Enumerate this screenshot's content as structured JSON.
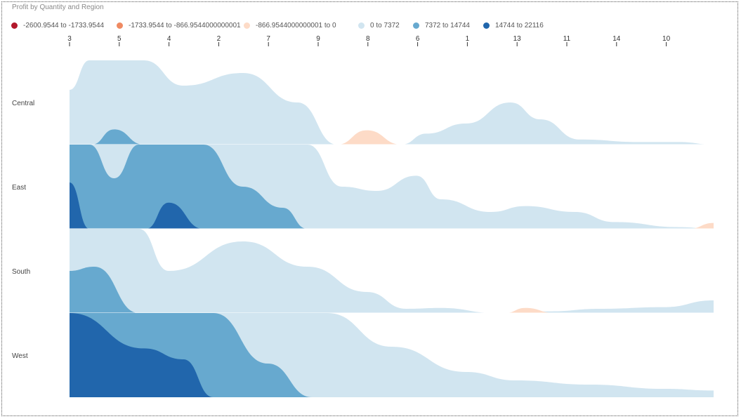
{
  "chart_data": {
    "type": "area",
    "title": "Profit by Quantity and Region",
    "legend_position": "top-left",
    "legend": [
      {
        "label": "-2600.9544 to -1733.9544",
        "color": "#b2182b"
      },
      {
        "label": "-1733.9544 to -866.9544000000001",
        "color": "#ef8a62"
      },
      {
        "label": "-866.9544000000001 to 0",
        "color": "#fddbc7"
      },
      {
        "label": "0 to 7372",
        "color": "#d1e5f0"
      },
      {
        "label": "7372 to 14744",
        "color": "#67a9cf"
      },
      {
        "label": "14744 to 22116",
        "color": "#2166ac"
      }
    ],
    "categories": [
      "3",
      "5",
      "4",
      "2",
      "7",
      "9",
      "8",
      "6",
      "1",
      "13",
      "11",
      "14",
      "10"
    ],
    "x_domain": [
      0,
      13
    ],
    "ylim": [
      0,
      1
    ],
    "grid": false,
    "regions": [
      {
        "name": "Central",
        "bands": [
          {
            "legend_index": 3,
            "points": [
              [
                0,
                0.65
              ],
              [
                0.4,
                1.0
              ],
              [
                1.5,
                1.0
              ],
              [
                2.3,
                0.7
              ],
              [
                3.5,
                0.85
              ],
              [
                4.6,
                0.5
              ],
              [
                5.4,
                0.0
              ]
            ]
          },
          {
            "legend_index": 4,
            "points": [
              [
                0.45,
                0.0
              ],
              [
                0.9,
                0.18
              ],
              [
                1.5,
                0.0
              ]
            ]
          },
          {
            "legend_index": 2,
            "points": [
              [
                5.4,
                0.0
              ],
              [
                6.0,
                0.17
              ],
              [
                6.7,
                0.0
              ]
            ]
          },
          {
            "legend_index": 3,
            "points": [
              [
                6.7,
                0.0
              ],
              [
                7.2,
                0.13
              ],
              [
                8.0,
                0.25
              ],
              [
                8.9,
                0.5
              ],
              [
                9.5,
                0.3
              ],
              [
                10.3,
                0.06
              ],
              [
                11.5,
                0.03
              ],
              [
                12.3,
                0.03
              ],
              [
                13,
                0.0
              ]
            ]
          }
        ]
      },
      {
        "name": "East",
        "bands": [
          {
            "legend_index": 3,
            "points": [
              [
                0,
                1.0
              ],
              [
                4.8,
                1.0
              ],
              [
                5.5,
                0.5
              ],
              [
                6.2,
                0.45
              ],
              [
                7.0,
                0.63
              ],
              [
                7.5,
                0.35
              ],
              [
                8.5,
                0.2
              ],
              [
                9.2,
                0.27
              ],
              [
                10.2,
                0.2
              ],
              [
                11.0,
                0.08
              ],
              [
                12.3,
                0.02
              ],
              [
                13,
                0.0
              ]
            ]
          },
          {
            "legend_index": 4,
            "points": [
              [
                0,
                1.0
              ],
              [
                0.4,
                1.0
              ],
              [
                0.9,
                0.6
              ],
              [
                1.4,
                1.0
              ],
              [
                2.7,
                1.0
              ],
              [
                3.5,
                0.5
              ],
              [
                4.3,
                0.25
              ],
              [
                4.8,
                0.0
              ]
            ]
          },
          {
            "legend_index": 5,
            "points": [
              [
                0,
                0.55
              ],
              [
                0.4,
                0.0
              ]
            ]
          },
          {
            "legend_index": 5,
            "points": [
              [
                1.55,
                0.0
              ],
              [
                2.0,
                0.31
              ],
              [
                2.7,
                0.0
              ]
            ]
          },
          {
            "legend_index": 2,
            "points": [
              [
                12.5,
                0.0
              ],
              [
                13,
                0.07
              ]
            ]
          }
        ]
      },
      {
        "name": "South",
        "bands": [
          {
            "legend_index": 3,
            "points": [
              [
                0,
                1.0
              ],
              [
                1.4,
                1.0
              ],
              [
                2.0,
                0.5
              ],
              [
                3.5,
                0.85
              ],
              [
                4.8,
                0.55
              ],
              [
                6.0,
                0.25
              ],
              [
                6.8,
                0.05
              ],
              [
                7.5,
                0.06
              ],
              [
                8.6,
                0.0
              ],
              [
                9.0,
                0.0
              ],
              [
                9.7,
                0.02
              ],
              [
                10.7,
                0.05
              ],
              [
                12.0,
                0.07
              ],
              [
                13,
                0.15
              ]
            ]
          },
          {
            "legend_index": 4,
            "points": [
              [
                0,
                0.5
              ],
              [
                0.5,
                0.55
              ],
              [
                1.4,
                0.0
              ]
            ]
          },
          {
            "legend_index": 2,
            "points": [
              [
                8.8,
                0.0
              ],
              [
                9.2,
                0.06
              ],
              [
                9.8,
                0.0
              ]
            ]
          }
        ]
      },
      {
        "name": "West",
        "bands": [
          {
            "legend_index": 3,
            "points": [
              [
                0,
                1.0
              ],
              [
                5.2,
                1.0
              ],
              [
                6.5,
                0.6
              ],
              [
                8.0,
                0.3
              ],
              [
                9.0,
                0.2
              ],
              [
                10.5,
                0.15
              ],
              [
                12.0,
                0.1
              ],
              [
                13,
                0.08
              ]
            ]
          },
          {
            "legend_index": 4,
            "points": [
              [
                0,
                1.0
              ],
              [
                2.9,
                1.0
              ],
              [
                4.0,
                0.4
              ],
              [
                4.9,
                0.0
              ]
            ]
          },
          {
            "legend_index": 5,
            "points": [
              [
                0,
                1.0
              ],
              [
                1.5,
                0.58
              ],
              [
                2.3,
                0.45
              ],
              [
                2.9,
                0.0
              ]
            ]
          }
        ]
      }
    ]
  }
}
